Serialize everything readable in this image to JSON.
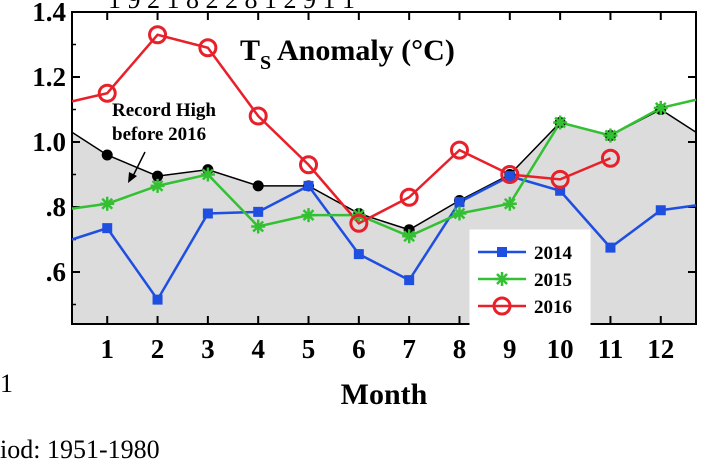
{
  "chart_data": {
    "type": "line",
    "title": "TS Anomaly (°C)",
    "title_main": "T",
    "title_sub": "S",
    "title_rest": " Anomaly (°C)",
    "xlabel": "Month",
    "ylabel": "",
    "x": [
      1,
      2,
      3,
      4,
      5,
      6,
      7,
      8,
      9,
      10,
      11,
      12
    ],
    "xlim": [
      0.3,
      12.7
    ],
    "ylim": [
      0.44,
      1.4
    ],
    "yticks": [
      0.6,
      0.8,
      1.0,
      1.2,
      1.4
    ],
    "ytick_labels": [
      ".6",
      ".8",
      "1.0",
      "1.2",
      "1.4"
    ],
    "xtick_labels": [
      "1",
      "2",
      "3",
      "4",
      "5",
      "6",
      "7",
      "8",
      "9",
      "10",
      "11",
      "12"
    ],
    "record_high": {
      "label_line1": "Record High",
      "label_line2": "before 2016",
      "values": [
        0.96,
        0.895,
        0.915,
        0.865,
        0.865,
        0.78,
        0.73,
        0.82,
        0.9,
        1.06,
        1.02,
        1.1
      ],
      "edge_left": 1.03,
      "edge_right": 1.03,
      "color": "#000000",
      "fill": "#dcdcdc"
    },
    "series": [
      {
        "name": "2014",
        "marker": "square",
        "color": "#1f4fe0",
        "values": [
          0.735,
          0.515,
          0.78,
          0.785,
          0.865,
          0.655,
          0.575,
          0.815,
          0.895,
          0.85,
          0.675,
          0.79
        ],
        "edge_left": 0.7,
        "edge_right": 0.805
      },
      {
        "name": "2015",
        "marker": "star",
        "color": "#33c033",
        "values": [
          0.81,
          0.865,
          0.9,
          0.74,
          0.775,
          0.775,
          0.71,
          0.78,
          0.81,
          1.06,
          1.02,
          1.105
        ],
        "edge_left": 0.795,
        "edge_right": 1.13
      },
      {
        "name": "2016",
        "marker": "circle",
        "color": "#e8202a",
        "values": [
          1.15,
          1.33,
          1.29,
          1.08,
          0.93,
          0.75,
          0.83,
          0.975,
          0.9,
          0.885,
          0.95,
          null
        ],
        "edge_left": 1.125,
        "edge_right": null
      }
    ],
    "legend_position": "bottom-right"
  },
  "fragments": {
    "top_row": "1   9   2   1   8   2   2   8   1   2   9   1   1",
    "left_digit": "1",
    "bottom_text": "iod: 1951-1980"
  }
}
